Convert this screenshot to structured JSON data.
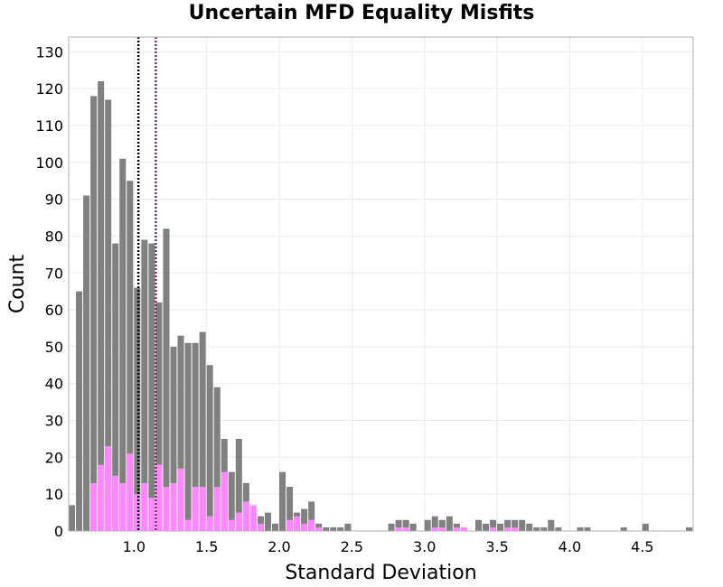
{
  "chart_data": {
    "type": "bar",
    "title": "Uncertain MFD Equality Misfits",
    "xlabel": "Standard Deviation",
    "ylabel": "Count",
    "xlim": [
      0.55,
      4.85
    ],
    "ylim": [
      0,
      134
    ],
    "bin_width": 0.05,
    "grid": true,
    "x_ticks": [
      "1.0",
      "1.5",
      "2.0",
      "2.5",
      "3.0",
      "3.5",
      "4.0",
      "4.5"
    ],
    "y_ticks": [
      "0",
      "10",
      "20",
      "30",
      "40",
      "50",
      "60",
      "70",
      "80",
      "90",
      "100",
      "110",
      "120",
      "130"
    ],
    "bin_start": [
      0.55,
      0.6,
      0.65,
      0.7,
      0.75,
      0.8,
      0.85,
      0.9,
      0.95,
      1.0,
      1.05,
      1.1,
      1.15,
      1.2,
      1.25,
      1.3,
      1.35,
      1.4,
      1.45,
      1.5,
      1.55,
      1.6,
      1.65,
      1.7,
      1.75,
      1.8,
      1.85,
      1.9,
      1.95,
      2.0,
      2.05,
      2.1,
      2.15,
      2.2,
      2.25,
      2.3,
      2.35,
      2.4,
      2.45,
      2.5,
      2.55,
      2.6,
      2.65,
      2.7,
      2.75,
      2.8,
      2.85,
      2.9,
      2.95,
      3.0,
      3.05,
      3.1,
      3.15,
      3.2,
      3.25,
      3.3,
      3.35,
      3.4,
      3.45,
      3.5,
      3.55,
      3.6,
      3.65,
      3.7,
      3.75,
      3.8,
      3.85,
      3.9,
      3.95,
      4.0,
      4.05,
      4.1,
      4.15,
      4.2,
      4.25,
      4.3,
      4.35,
      4.4,
      4.45,
      4.5,
      4.55,
      4.6,
      4.65,
      4.7,
      4.75,
      4.8
    ],
    "series": [
      {
        "color": "#808080",
        "values": [
          7,
          65,
          91,
          118,
          122,
          117,
          78,
          101,
          95,
          66,
          79,
          78,
          62,
          82,
          50,
          53,
          51,
          51,
          54,
          45,
          39,
          25,
          16,
          25,
          13,
          5,
          4,
          5,
          2,
          16,
          12,
          5,
          6,
          8,
          2,
          1,
          1,
          1,
          2,
          0,
          0,
          0,
          0,
          0,
          2,
          3,
          3,
          2,
          0,
          3,
          4,
          3,
          4,
          2,
          1,
          0,
          3,
          2,
          3,
          2,
          3,
          3,
          3,
          2,
          1,
          1,
          3,
          1,
          0,
          0,
          1,
          1,
          0,
          0,
          0,
          0,
          1,
          0,
          0,
          2,
          0,
          0,
          0,
          0,
          0,
          1
        ]
      },
      {
        "color": "#ff88ff",
        "values": [
          0,
          0,
          0,
          13,
          18,
          23,
          15,
          13,
          21,
          10,
          13,
          9,
          18,
          12,
          13,
          17,
          3,
          12,
          12,
          4,
          12,
          16,
          3,
          5,
          8,
          7,
          2,
          0,
          0,
          0,
          3,
          4,
          2,
          3,
          1,
          0,
          0,
          0,
          0,
          0,
          0,
          0,
          0,
          0,
          0,
          1,
          1,
          0,
          0,
          0,
          1,
          1,
          0,
          1,
          1,
          0,
          0,
          0,
          1,
          0,
          1,
          1,
          0,
          0,
          0,
          0,
          0,
          0,
          0,
          0,
          0,
          0,
          0,
          0,
          0,
          0,
          0,
          0,
          0,
          0,
          0,
          0,
          0,
          0,
          0,
          0
        ]
      }
    ],
    "reference_lines": [
      {
        "x": 1.03,
        "color": "#000000"
      },
      {
        "x": 1.15,
        "color": "#7a2a6a"
      }
    ]
  }
}
